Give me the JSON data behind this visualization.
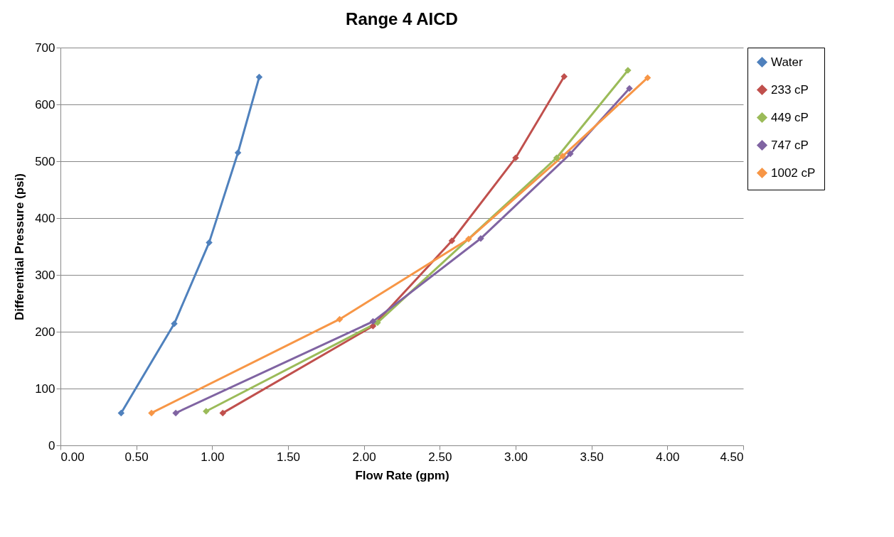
{
  "chart_data": {
    "type": "line",
    "title": "Range 4 AICD",
    "xlabel": "Flow Rate (gpm)",
    "ylabel": "Differential Pressure (psi)",
    "xlim": [
      0,
      4.5
    ],
    "xticks": [
      {
        "value": 0,
        "label": "0.00"
      },
      {
        "value": 0.5,
        "label": "0.50"
      },
      {
        "value": 1,
        "label": "1.00"
      },
      {
        "value": 1.5,
        "label": "1.50"
      },
      {
        "value": 2,
        "label": "2.00"
      },
      {
        "value": 2.5,
        "label": "2.50"
      },
      {
        "value": 3,
        "label": "3.00"
      },
      {
        "value": 3.5,
        "label": "3.50"
      },
      {
        "value": 4,
        "label": "4.00"
      },
      {
        "value": 4.5,
        "label": "4.50"
      }
    ],
    "ylim": [
      0,
      700
    ],
    "yticks": [
      0,
      100,
      200,
      300,
      400,
      500,
      600,
      700
    ],
    "grid": "y",
    "legend": "right",
    "marker": "diamond",
    "line_style": "solid",
    "series": [
      {
        "name": "Water",
        "color": "#4f81bd",
        "x": [
          0.4,
          0.75,
          0.98,
          1.17,
          1.31
        ],
        "values": [
          57,
          214,
          357,
          515,
          648
        ]
      },
      {
        "name": "233 cP",
        "color": "#c0504d",
        "x": [
          1.07,
          2.06,
          2.58,
          3.0,
          3.32
        ],
        "values": [
          57,
          210,
          360,
          506,
          649
        ]
      },
      {
        "name": "449 cP",
        "color": "#9bbb59",
        "x": [
          0.96,
          2.09,
          3.27,
          3.74
        ],
        "values": [
          60,
          216,
          506,
          660
        ]
      },
      {
        "name": "747 cP",
        "color": "#8064a2",
        "x": [
          0.76,
          2.06,
          2.77,
          3.36,
          3.75
        ],
        "values": [
          57,
          218,
          364,
          513,
          628
        ]
      },
      {
        "name": "1002 cP",
        "color": "#f79646",
        "x": [
          0.6,
          1.84,
          2.69,
          3.31,
          3.87
        ],
        "values": [
          57,
          222,
          363,
          509,
          647
        ]
      }
    ]
  }
}
